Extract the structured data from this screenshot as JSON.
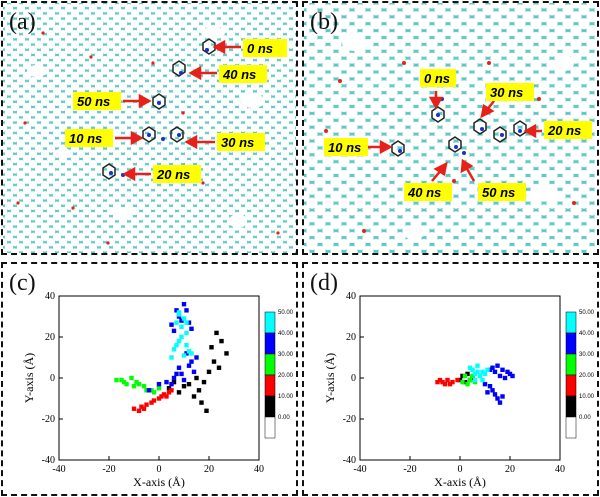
{
  "panels": {
    "a": {
      "label": "(a)",
      "snapshots": [
        "0 ns",
        "40 ns",
        "50 ns",
        "10 ns",
        "30 ns",
        "20 ns"
      ]
    },
    "b": {
      "label": "(b)",
      "snapshots": [
        "0 ns",
        "30 ns",
        "20 ns",
        "10 ns",
        "40 ns",
        "50 ns"
      ]
    }
  },
  "colors": {
    "graphene": "#5cc8c4",
    "defect": "#e8201a",
    "arrow": "#e8201a",
    "highlight": "#ffff00"
  },
  "colorbar": {
    "title": "Simulation Time (ns)",
    "ticks": [
      "50.00",
      "40.00",
      "30.00",
      "20.00",
      "10.00",
      "0.00"
    ],
    "bands": [
      "#00ffff",
      "#0000ff",
      "#00ff00",
      "#ff0000",
      "#000000",
      "#ffffff"
    ]
  },
  "chart_data": [
    {
      "type": "scatter",
      "panel_label": "(c)",
      "xlabel": "X-axis (Å)",
      "ylabel": "Y-axis (Å)",
      "xlim": [
        -40,
        40
      ],
      "ylim": [
        -40,
        40
      ],
      "xticks": [
        -40,
        -20,
        0,
        20,
        40
      ],
      "yticks": [
        -40,
        -20,
        0,
        20,
        40
      ],
      "series": [
        {
          "name": "0.00",
          "color": "#000000",
          "points": [
            [
              20,
              3
            ],
            [
              24,
              5
            ],
            [
              27,
              12
            ],
            [
              22,
              8
            ],
            [
              18,
              -2
            ],
            [
              16,
              -6
            ],
            [
              17,
              -12
            ],
            [
              19,
              -16
            ],
            [
              14,
              -9
            ],
            [
              10,
              -4
            ],
            [
              6,
              -2
            ],
            [
              4,
              -5
            ],
            [
              8,
              -7
            ],
            [
              21,
              15
            ],
            [
              25,
              18
            ],
            [
              23,
              22
            ],
            [
              15,
              0
            ],
            [
              12,
              -3
            ]
          ]
        },
        {
          "name": "10.00",
          "color": "#ff0000",
          "points": [
            [
              -10,
              -15
            ],
            [
              -7,
              -14
            ],
            [
              -3,
              -12
            ],
            [
              0,
              -10
            ],
            [
              2,
              -8
            ],
            [
              4,
              -7
            ],
            [
              -5,
              -13
            ],
            [
              -8,
              -16
            ],
            [
              1,
              -9
            ],
            [
              -2,
              -11
            ],
            [
              -6,
              -15
            ],
            [
              3,
              -9
            ],
            [
              5,
              -6
            ]
          ]
        },
        {
          "name": "20.00",
          "color": "#00ff00",
          "points": [
            [
              -17,
              -1
            ],
            [
              -14,
              -2
            ],
            [
              -11,
              0
            ],
            [
              -8,
              -3
            ],
            [
              -5,
              -6
            ],
            [
              -2,
              -7
            ],
            [
              0,
              -5
            ],
            [
              -13,
              -3
            ],
            [
              -9,
              -2
            ],
            [
              -6,
              -4
            ],
            [
              -3,
              -6
            ],
            [
              -15,
              -1
            ],
            [
              -10,
              -4
            ]
          ]
        },
        {
          "name": "30.00",
          "color": "#0000ff",
          "points": [
            [
              -4,
              -6
            ],
            [
              0,
              -3
            ],
            [
              3,
              -2
            ],
            [
              6,
              0
            ],
            [
              9,
              2
            ],
            [
              12,
              6
            ],
            [
              15,
              10
            ],
            [
              11,
              12
            ],
            [
              8,
              5
            ],
            [
              14,
              3
            ],
            [
              10,
              -1
            ],
            [
              5,
              -3
            ],
            [
              13,
              8
            ],
            [
              7,
              2
            ]
          ]
        },
        {
          "name": "40.00",
          "color": "#0000ff",
          "points": [
            [
              9,
              28
            ],
            [
              7,
              33
            ],
            [
              10,
              36
            ],
            [
              6,
              23
            ],
            [
              12,
              27
            ],
            [
              8,
              30
            ],
            [
              11,
              33
            ],
            [
              13,
              24
            ],
            [
              5,
              26
            ]
          ]
        },
        {
          "name": "50.00",
          "color": "#00ffff",
          "points": [
            [
              8,
              32
            ],
            [
              10,
              29
            ],
            [
              7,
              27
            ],
            [
              9,
              25
            ],
            [
              11,
              22
            ],
            [
              8,
              18
            ],
            [
              6,
              14
            ],
            [
              10,
              11
            ],
            [
              12,
              13
            ],
            [
              9,
              20
            ],
            [
              7,
              16
            ],
            [
              11,
              16
            ],
            [
              5,
              10
            ],
            [
              13,
              12
            ],
            [
              8,
              31
            ],
            [
              11,
              27
            ]
          ]
        }
      ]
    },
    {
      "type": "scatter",
      "panel_label": "(d)",
      "xlabel": "X-axis (Å)",
      "ylabel": "Y-axis (Å)",
      "xlim": [
        -40,
        40
      ],
      "ylim": [
        -40,
        40
      ],
      "xticks": [
        -40,
        -20,
        0,
        20,
        40
      ],
      "yticks": [
        -40,
        -20,
        0,
        20,
        40
      ],
      "series": [
        {
          "name": "0.00",
          "color": "#000000",
          "points": [
            [
              1,
              1
            ],
            [
              3,
              2
            ],
            [
              5,
              0
            ],
            [
              4,
              -1
            ],
            [
              2,
              -2
            ],
            [
              0,
              -1
            ]
          ]
        },
        {
          "name": "10.00",
          "color": "#ff0000",
          "points": [
            [
              -9,
              -2
            ],
            [
              -7,
              -2
            ],
            [
              -5,
              -1
            ],
            [
              -3,
              -2
            ],
            [
              -1,
              -1
            ],
            [
              -6,
              -3
            ],
            [
              -8,
              -1
            ],
            [
              -4,
              -3
            ]
          ]
        },
        {
          "name": "20.00",
          "color": "#00ff00",
          "points": [
            [
              2,
              1
            ],
            [
              4,
              -1
            ],
            [
              6,
              -2
            ],
            [
              3,
              -3
            ],
            [
              5,
              1
            ],
            [
              1,
              -2
            ]
          ]
        },
        {
          "name": "30.00",
          "color": "#0000ff",
          "points": [
            [
              10,
              -3
            ],
            [
              13,
              -6
            ],
            [
              15,
              -10
            ],
            [
              16,
              -12
            ],
            [
              14,
              -8
            ],
            [
              12,
              -4
            ],
            [
              17,
              -9
            ],
            [
              11,
              -7
            ]
          ]
        },
        {
          "name": "40.00",
          "color": "#0000ff",
          "points": [
            [
              14,
              3
            ],
            [
              17,
              4
            ],
            [
              20,
              2
            ],
            [
              18,
              0
            ],
            [
              16,
              1
            ],
            [
              13,
              5
            ],
            [
              19,
              3
            ],
            [
              15,
              6
            ],
            [
              12,
              4
            ],
            [
              21,
              1
            ]
          ]
        },
        {
          "name": "50.00",
          "color": "#00ffff",
          "points": [
            [
              5,
              4
            ],
            [
              7,
              6
            ],
            [
              9,
              3
            ],
            [
              6,
              2
            ],
            [
              8,
              1
            ],
            [
              10,
              2
            ],
            [
              4,
              5
            ],
            [
              11,
              4
            ],
            [
              6,
              -1
            ],
            [
              9,
              -1
            ],
            [
              7,
              3
            ]
          ]
        }
      ]
    }
  ]
}
